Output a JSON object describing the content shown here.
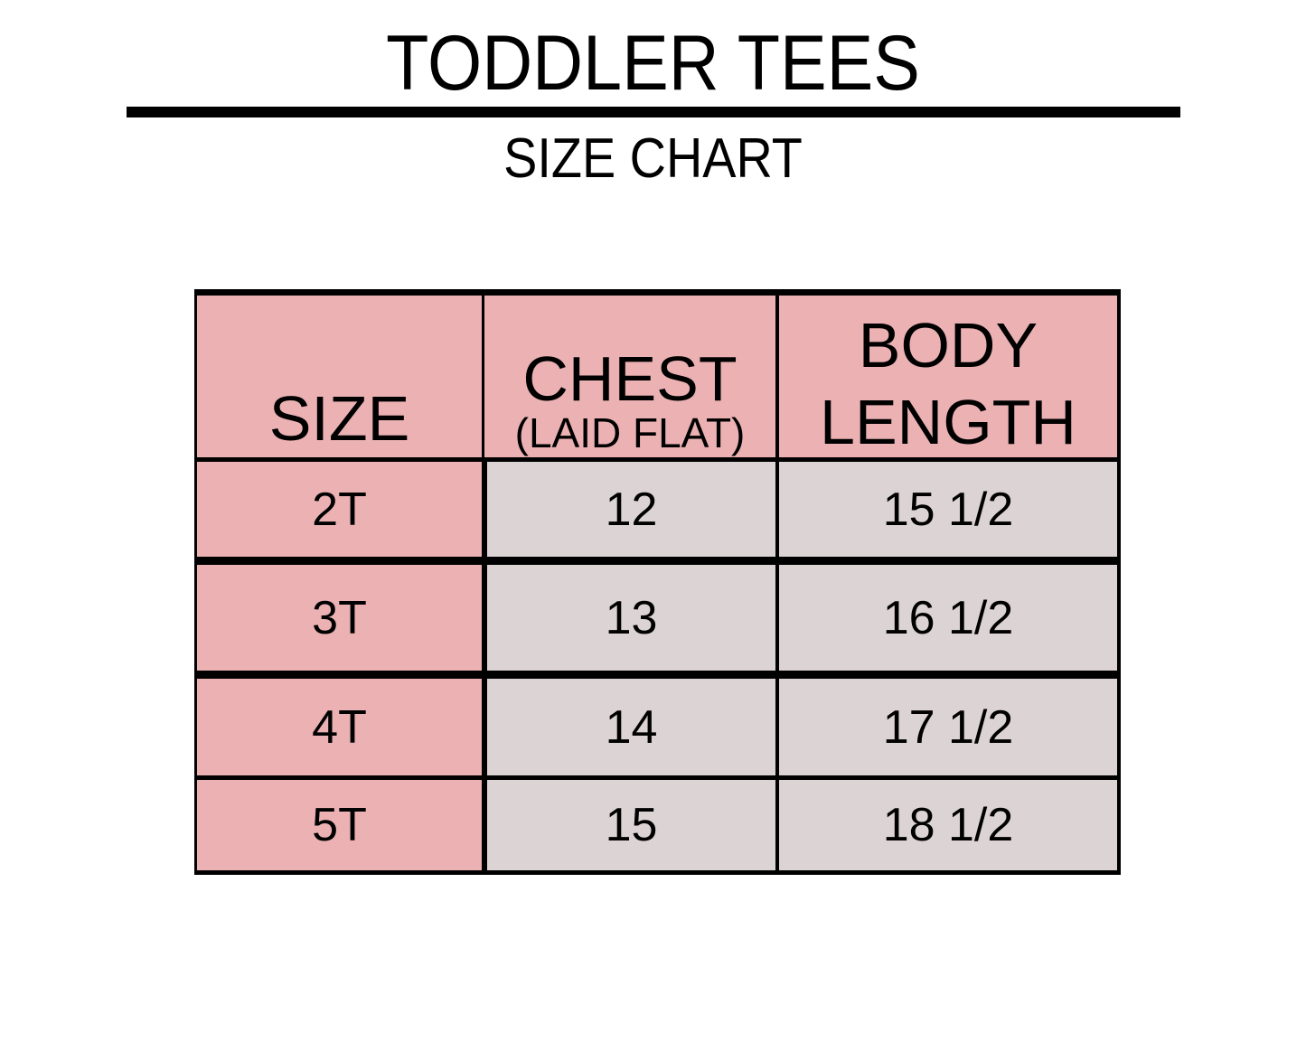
{
  "title": "TODDLER TEES",
  "subtitle": "SIZE CHART",
  "colors": {
    "header": "#ebb1b3",
    "size_column": "#ebb1b3",
    "value_cells": "#dcd3d4",
    "borders": "#000000"
  },
  "table": {
    "headers": {
      "size": "SIZE",
      "chest": "CHEST",
      "chest_note": "(LAID FLAT)",
      "body_length_line1": "BODY",
      "body_length_line2": "LENGTH"
    },
    "rows": [
      {
        "size": "2T",
        "chest": "12",
        "body_length": "15 1/2"
      },
      {
        "size": "3T",
        "chest": "13",
        "body_length": "16 1/2"
      },
      {
        "size": "4T",
        "chest": "14",
        "body_length": "17 1/2"
      },
      {
        "size": "5T",
        "chest": "15",
        "body_length": "18 1/2"
      }
    ]
  }
}
